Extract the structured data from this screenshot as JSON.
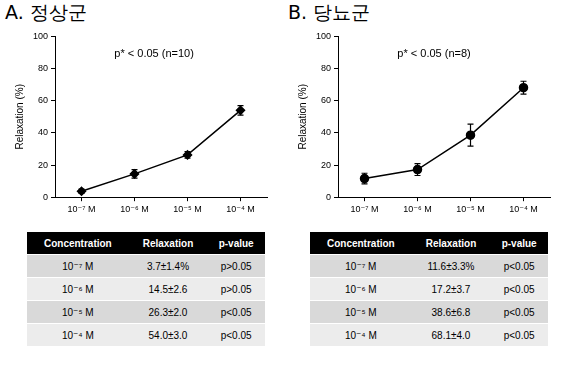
{
  "chart_data": [
    {
      "type": "line",
      "title": "A. 정상군",
      "y_label": "Relaxation (%)",
      "annotations": [
        "p* < 0.05 (n=10)"
      ],
      "categories": [
        "10⁻⁷ M",
        "10⁻⁶ M",
        "10⁻⁵ M",
        "10⁻⁴ M"
      ],
      "values": [
        3.7,
        14.5,
        26.3,
        54.0
      ],
      "errors": [
        1.4,
        2.6,
        2.0,
        3.0
      ],
      "color": "#000000",
      "marker": "diamond",
      "ylim": [
        0,
        100
      ],
      "yticks": [
        0,
        20,
        40,
        60,
        80,
        100
      ],
      "grid": false
    },
    {
      "type": "line",
      "title": "B. 당뇨군",
      "y_label": "Relaxation (%)",
      "annotations": [
        "p* < 0.05 (n=8)"
      ],
      "categories": [
        "10⁻⁷ M",
        "10⁻⁶ M",
        "10⁻⁵ M",
        "10⁻⁴ M"
      ],
      "values": [
        11.6,
        17.2,
        38.6,
        68.1
      ],
      "errors": [
        3.3,
        3.7,
        6.8,
        4.0
      ],
      "color": "#000000",
      "marker": "circle",
      "ylim": [
        0,
        100
      ],
      "yticks": [
        0,
        20,
        40,
        60,
        80,
        100
      ],
      "grid": false
    }
  ],
  "tables": [
    {
      "header": [
        "Concentration",
        "Relaxation",
        "p-value"
      ],
      "rows": [
        [
          "10⁻⁷ M",
          "3.7±1.4%",
          "p>0.05"
        ],
        [
          "10⁻⁶ M",
          "14.5±2.6",
          "p>0.05"
        ],
        [
          "10⁻⁵ M",
          "26.3±2.0",
          "p<0.05"
        ],
        [
          "10⁻⁴ M",
          "54.0±3.0",
          "p<0.05"
        ]
      ]
    },
    {
      "header": [
        "Concentration",
        "Relaxation",
        "p-value"
      ],
      "rows": [
        [
          "10⁻⁷ M",
          "11.6±3.3%",
          "p<0.05"
        ],
        [
          "10⁻⁶ M",
          "17.2±3.7",
          "p<0.05"
        ],
        [
          "10⁻⁵ M",
          "38.6±6.8",
          "p<0.05"
        ],
        [
          "10⁻⁴ M",
          "68.1±4.0",
          "p<0.05"
        ]
      ]
    }
  ]
}
